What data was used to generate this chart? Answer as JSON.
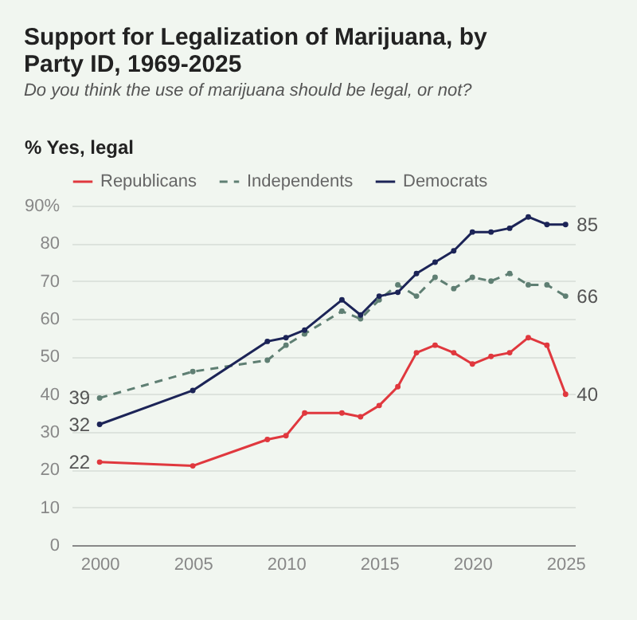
{
  "chart_data": {
    "type": "line",
    "title": "Support for Legalization of Marijuana, by Party ID, 1969-2025",
    "subtitle": "Do you think the use of marijuana should be legal, or not?",
    "ylabel": "% Yes, legal",
    "x": [
      2000,
      2005,
      2009,
      2010,
      2011,
      2013,
      2014,
      2015,
      2016,
      2017,
      2018,
      2019,
      2020,
      2021,
      2022,
      2023,
      2024,
      2025
    ],
    "series": [
      {
        "name": "Republicans",
        "color": "#e0383e",
        "line_style": "solid",
        "values": [
          22,
          21,
          28,
          29,
          35,
          35,
          34,
          37,
          42,
          51,
          53,
          51,
          48,
          50,
          51,
          55,
          53,
          40
        ],
        "value_labels": [
          "22",
          null,
          null,
          null,
          null,
          null,
          null,
          null,
          null,
          null,
          null,
          null,
          null,
          null,
          null,
          null,
          null,
          "40"
        ]
      },
      {
        "name": "Independents",
        "color": "#5f7f73",
        "line_style": "dashed",
        "values": [
          39,
          46,
          49,
          53,
          56,
          62,
          60,
          65,
          69,
          66,
          71,
          68,
          71,
          70,
          72,
          69,
          69,
          66
        ],
        "value_labels": [
          "39",
          null,
          null,
          null,
          null,
          null,
          null,
          null,
          null,
          null,
          null,
          null,
          null,
          null,
          null,
          null,
          null,
          "66"
        ]
      },
      {
        "name": "Democrats",
        "color": "#1c2457",
        "line_style": "solid",
        "values": [
          32,
          41,
          54,
          55,
          57,
          65,
          61,
          66,
          67,
          72,
          75,
          78,
          83,
          83,
          84,
          87,
          85,
          85
        ],
        "value_labels": [
          "32",
          null,
          null,
          null,
          null,
          null,
          null,
          null,
          null,
          null,
          null,
          null,
          null,
          null,
          null,
          null,
          null,
          "85"
        ]
      }
    ],
    "xlim": [
      1998.5,
      2025.5
    ],
    "xticks": [
      2000,
      2005,
      2010,
      2015,
      2020,
      2025
    ],
    "ylim": [
      0,
      90
    ],
    "yticks": [
      0,
      10,
      20,
      30,
      40,
      50,
      60,
      70,
      80,
      {
        "value": 90,
        "label": "90%"
      }
    ],
    "grid": "y",
    "legend": "top",
    "marker": "circle"
  }
}
